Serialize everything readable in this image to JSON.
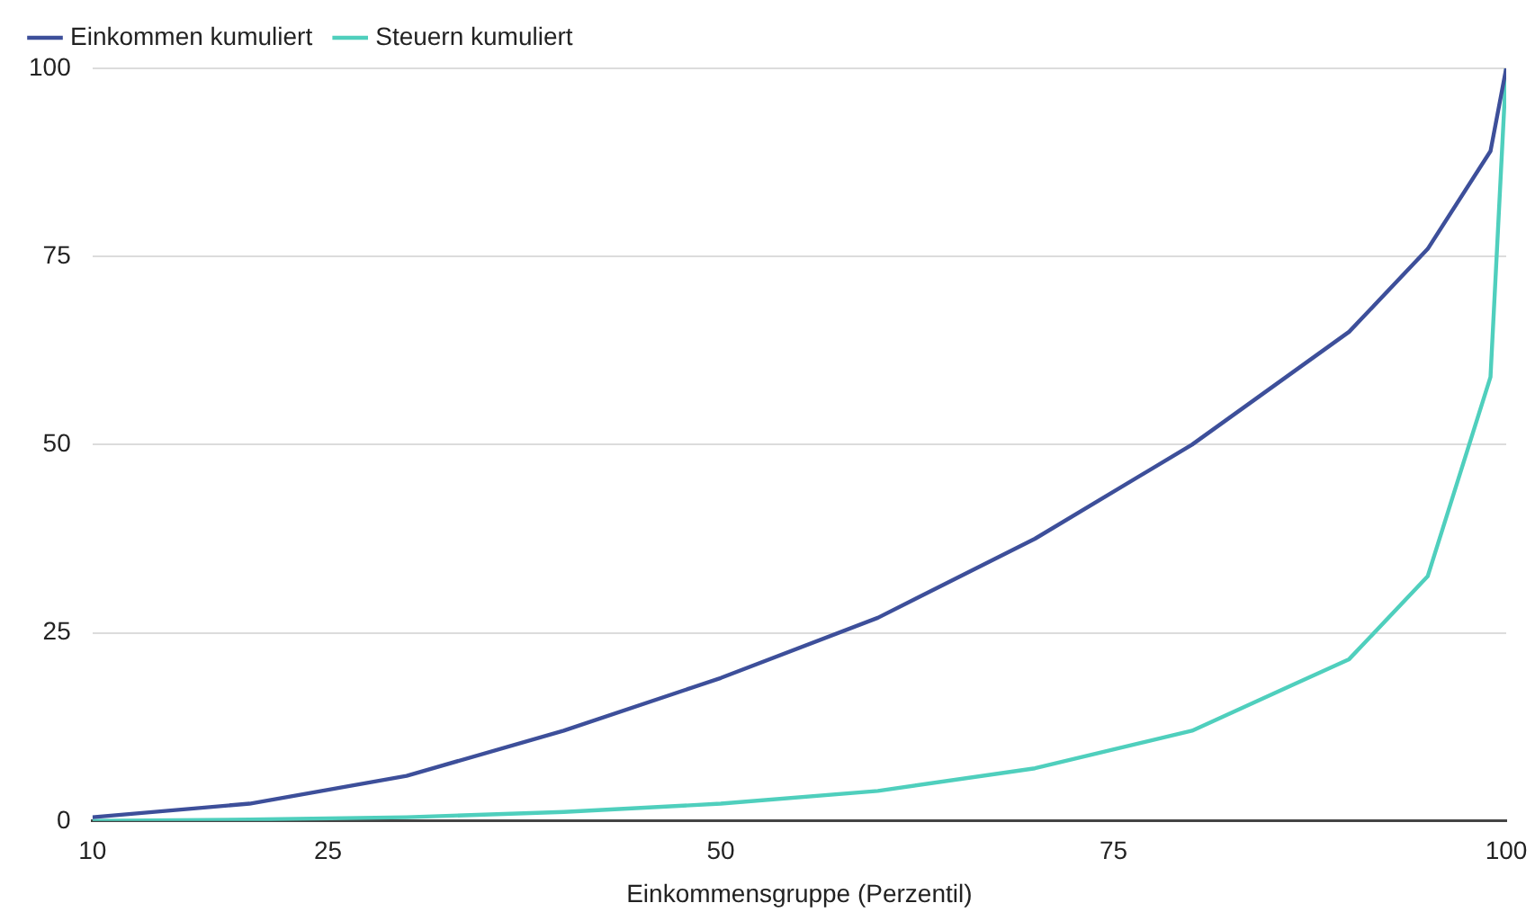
{
  "chart_data": {
    "type": "line",
    "xlabel": "Einkommensgruppe (Perzentil)",
    "x": [
      10,
      20,
      30,
      40,
      50,
      60,
      70,
      80,
      90,
      95,
      99,
      100
    ],
    "series": [
      {
        "name": "Einkommen kumuliert",
        "color": "#3d4f9a",
        "values": [
          0.5,
          2.3,
          6,
          12,
          19,
          27,
          37.5,
          50,
          65,
          76,
          89,
          100
        ]
      },
      {
        "name": "Steuern kumuliert",
        "color": "#4fcfbd",
        "values": [
          0,
          0.2,
          0.5,
          1.2,
          2.3,
          4,
          7,
          12,
          21.5,
          32.5,
          59,
          100
        ]
      }
    ],
    "xlim": [
      10,
      100
    ],
    "xticks": [
      10,
      25,
      50,
      75,
      100
    ],
    "ylim": [
      0,
      100
    ],
    "yticks": [
      0,
      25,
      50,
      75,
      100
    ],
    "grid": "y",
    "legend": "top left",
    "marker": "none",
    "line_style": "solid"
  }
}
